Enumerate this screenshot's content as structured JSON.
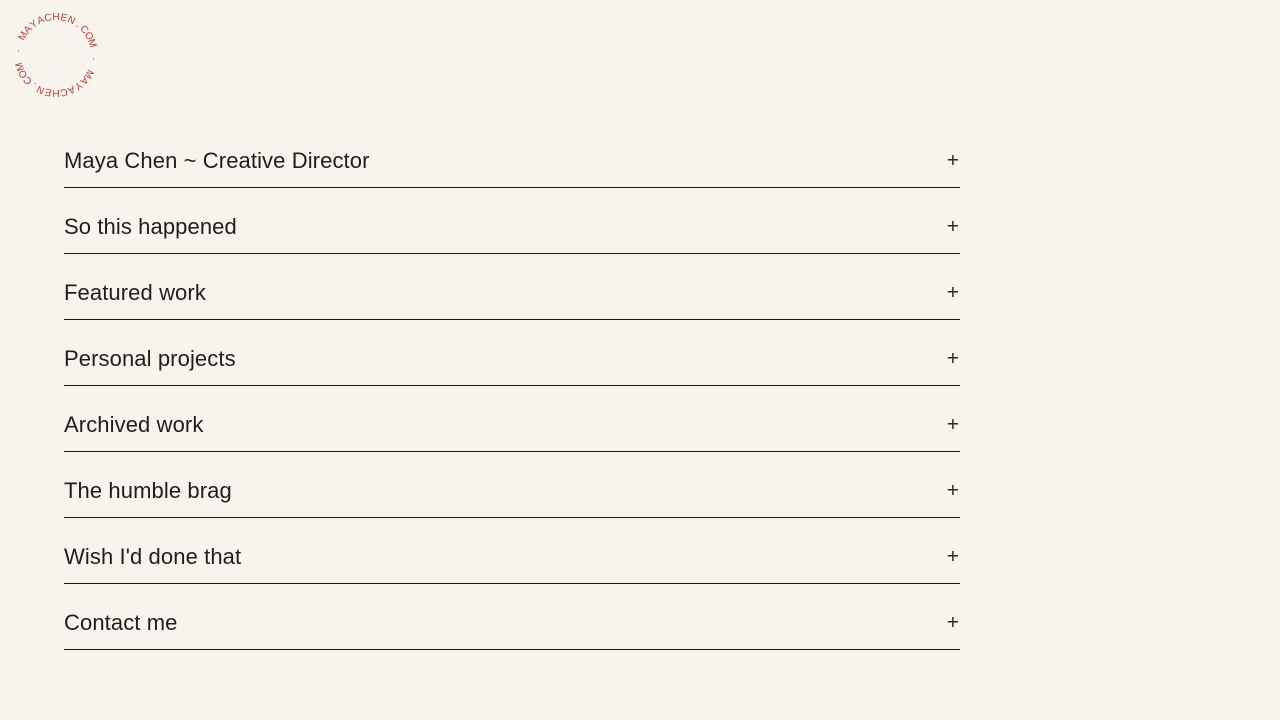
{
  "page": {
    "background_color": "#f7f4ed",
    "divider_color": "#1c1913",
    "text_color": "#211e19"
  },
  "logo": {
    "circular_text": "MAYACHEN.COM · MAYACHEN.COM · ",
    "color": "#c8392b"
  },
  "accordion": {
    "expand_icon": "+",
    "items": [
      {
        "label": "Maya Chen ~ Creative Director"
      },
      {
        "label": "So this happened"
      },
      {
        "label": "Featured work"
      },
      {
        "label": "Personal projects"
      },
      {
        "label": "Archived work"
      },
      {
        "label": "The humble brag"
      },
      {
        "label": "Wish I'd done that"
      },
      {
        "label": "Contact me"
      }
    ]
  }
}
